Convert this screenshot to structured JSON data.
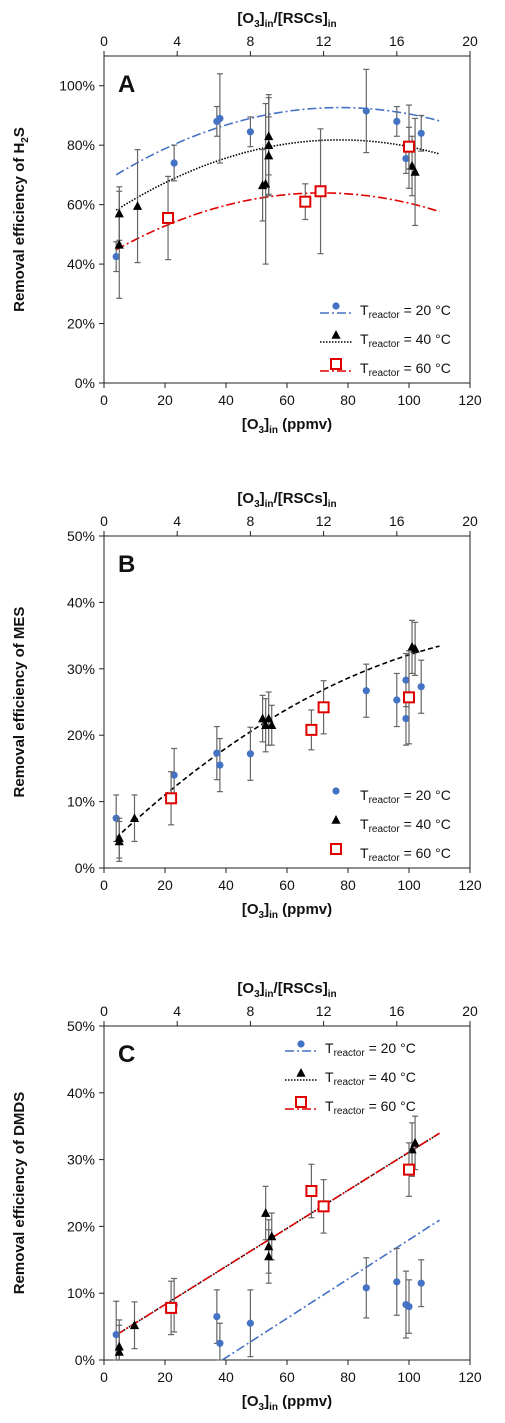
{
  "chart_data": [
    {
      "type": "scatter",
      "panel": "A",
      "xlabel": "[O3]in (ppmv)",
      "xlabel_parts": {
        "main": "[O",
        "sub1": "3",
        "mid": "]",
        "sub2": "in",
        "tail": " (ppmv)"
      },
      "x2label": "[O3]in/[RSCs]in",
      "x2label_parts": {
        "a": "[O",
        "s1": "3",
        "b": "]",
        "s2": "in",
        "c": "/[RSCs]",
        "s3": "in"
      },
      "ylabel": "Removal efficiency of H2S",
      "ylabel_parts": {
        "main": "Removal efficiency of H",
        "sub": "2",
        "tail": "S"
      },
      "xlim": [
        0,
        120
      ],
      "ylim": [
        0,
        110
      ],
      "x2lim": [
        0,
        20
      ],
      "xticks": [
        "0",
        "20",
        "40",
        "60",
        "80",
        "100",
        "120"
      ],
      "x2ticks": [
        "0",
        "4",
        "8",
        "12",
        "16",
        "20"
      ],
      "yticks": [
        "0%",
        "20%",
        "40%",
        "60%",
        "80%",
        "100%"
      ],
      "legend_position": "bottom-right",
      "series": [
        {
          "name": "Treactor = 20 °C",
          "label": {
            "main": "T",
            "sub": "reactor",
            "tail": " = 20 °C"
          },
          "marker": "circle",
          "color": "#4472C4",
          "line": "dashdot",
          "fit": [
            67.5,
            0.65,
            -0.0042
          ],
          "points": [
            [
              4,
              42.5,
              5
            ],
            [
              23,
              74,
              6
            ],
            [
              37,
              88,
              5
            ],
            [
              38,
              89,
              15
            ],
            [
              48,
              84.5,
              5
            ],
            [
              86,
              91.5,
              14
            ],
            [
              96,
              88,
              5
            ],
            [
              99,
              75.5,
              5
            ],
            [
              100,
              79,
              7
            ],
            [
              104,
              84,
              6
            ]
          ]
        },
        {
          "name": "Treactor = 40 °C",
          "label": {
            "main": "T",
            "sub": "reactor",
            "tail": " = 40 °C"
          },
          "marker": "triangle",
          "color": "#000000",
          "line": "dotted",
          "fit": [
            55.5,
            0.68,
            -0.0044
          ],
          "points": [
            [
              5,
              57,
              9
            ],
            [
              5,
              46.5,
              18
            ],
            [
              11,
              59.5,
              19
            ],
            [
              52,
              66.5,
              12
            ],
            [
              53,
              67,
              27
            ],
            [
              54,
              76.5,
              13
            ],
            [
              54,
              80,
              17
            ],
            [
              54,
              83,
              13
            ],
            [
              101,
              73,
              10
            ],
            [
              102,
              71,
              18
            ]
          ]
        },
        {
          "name": "Treactor = 60 °C",
          "label": {
            "main": "T",
            "sub": "reactor",
            "tail": " = 60 °C"
          },
          "marker": "square",
          "color": "#E00000",
          "line": "dashdot",
          "fit": [
            42.5,
            0.6,
            -0.0042
          ],
          "points": [
            [
              21,
              55.5,
              14
            ],
            [
              66,
              61,
              6
            ],
            [
              71,
              64.5,
              21
            ],
            [
              100,
              79.5,
              14
            ]
          ]
        }
      ]
    },
    {
      "type": "scatter",
      "panel": "B",
      "xlabel": "[O3]in (ppmv)",
      "xlabel_parts": {
        "main": "[O",
        "sub1": "3",
        "mid": "]",
        "sub2": "in",
        "tail": " (ppmv)"
      },
      "x2label": "[O3]in/[RSCs]in",
      "x2label_parts": {
        "a": "[O",
        "s1": "3",
        "b": "]",
        "s2": "in",
        "c": "/[RSCs]",
        "s3": "in"
      },
      "ylabel": "Removal efficiency of MES",
      "xlim": [
        0,
        120
      ],
      "ylim": [
        0,
        50
      ],
      "x2lim": [
        0,
        20
      ],
      "xticks": [
        "0",
        "20",
        "40",
        "60",
        "80",
        "100",
        "120"
      ],
      "x2ticks": [
        "0",
        "4",
        "8",
        "12",
        "16",
        "20"
      ],
      "yticks": [
        "0%",
        "10%",
        "20%",
        "30%",
        "40%",
        "50%"
      ],
      "legend_position": "bottom-right",
      "fit": {
        "coeffs": [
          2.8,
          0.44,
          -0.00147
        ],
        "color": "#000000",
        "line": "dashed"
      },
      "series": [
        {
          "name": "Treactor = 20 °C",
          "label": {
            "main": "T",
            "sub": "reactor",
            "tail": " = 20 °C"
          },
          "marker": "circle",
          "color": "#4472C4",
          "points": [
            [
              4,
              7.5,
              3.5
            ],
            [
              23,
              14,
              4
            ],
            [
              37,
              17.3,
              4
            ],
            [
              38,
              15.5,
              4
            ],
            [
              48,
              17.2,
              4
            ],
            [
              86,
              26.7,
              4
            ],
            [
              96,
              25.3,
              4
            ],
            [
              99,
              28.3,
              4
            ],
            [
              99,
              22.5,
              4
            ],
            [
              104,
              27.3,
              4
            ]
          ]
        },
        {
          "name": "Treactor = 40 °C",
          "label": {
            "main": "T",
            "sub": "reactor",
            "tail": " = 40 °C"
          },
          "marker": "triangle",
          "color": "#000000",
          "points": [
            [
              5,
              4.5,
              3
            ],
            [
              5,
              4,
              3
            ],
            [
              10,
              7.5,
              3.5
            ],
            [
              52,
              22.5,
              3.5
            ],
            [
              53,
              21.5,
              4
            ],
            [
              54,
              22.5,
              4
            ],
            [
              55,
              21.5,
              3
            ],
            [
              101,
              33.3,
              4
            ],
            [
              102,
              33,
              4
            ]
          ]
        },
        {
          "name": "Treactor = 60 °C",
          "label": {
            "main": "T",
            "sub": "reactor",
            "tail": " = 60 °C"
          },
          "marker": "square",
          "color": "#E00000",
          "points": [
            [
              22,
              10.5,
              4
            ],
            [
              68,
              20.8,
              3
            ],
            [
              72,
              24.2,
              4
            ],
            [
              100,
              25.7,
              7
            ]
          ]
        }
      ]
    },
    {
      "type": "scatter",
      "panel": "C",
      "xlabel": "[O3]in (ppmv)",
      "xlabel_parts": {
        "main": "[O",
        "sub1": "3",
        "mid": "]",
        "sub2": "in",
        "tail": " (ppmv)"
      },
      "x2label": "[O3]in/[RSCs]in",
      "x2label_parts": {
        "a": "[O",
        "s1": "3",
        "b": "]",
        "s2": "in",
        "c": "/[RSCs]",
        "s3": "in"
      },
      "ylabel": "Removal efficiency of DMDS",
      "xlim": [
        0,
        120
      ],
      "ylim": [
        0,
        50
      ],
      "x2lim": [
        0,
        20
      ],
      "xticks": [
        "0",
        "20",
        "40",
        "60",
        "80",
        "100",
        "120"
      ],
      "x2ticks": [
        "0",
        "4",
        "8",
        "12",
        "16",
        "20"
      ],
      "yticks": [
        "0%",
        "10%",
        "20%",
        "30%",
        "40%",
        "50%"
      ],
      "legend_position": "top-right",
      "series": [
        {
          "name": "Treactor = 20 °C",
          "label": {
            "main": "T",
            "sub": "reactor",
            "tail": " = 20 °C"
          },
          "marker": "circle",
          "color": "#4472C4",
          "line": "dashdot",
          "linear": {
            "slope": 0.294,
            "intercept": -11.4,
            "xfrom": 38.8
          },
          "points": [
            [
              4,
              3.8,
              5
            ],
            [
              23,
              8.2,
              4
            ],
            [
              37,
              6.5,
              4
            ],
            [
              38,
              2.5,
              3
            ],
            [
              48,
              5.5,
              5
            ],
            [
              86,
              10.8,
              4.5
            ],
            [
              96,
              11.7,
              5
            ],
            [
              99,
              8.3,
              5
            ],
            [
              100,
              8,
              4
            ],
            [
              104,
              11.5,
              3.5
            ]
          ]
        },
        {
          "name": "Treactor = 40 °C",
          "label": {
            "main": "T",
            "sub": "reactor",
            "tail": " = 40 °C"
          },
          "marker": "triangle",
          "color": "#000000",
          "line": "dotted",
          "linear": {
            "slope": 0.285,
            "intercept": 2.6,
            "xfrom": 4
          },
          "points": [
            [
              5,
              2,
              4
            ],
            [
              5,
              1.2,
              4
            ],
            [
              10,
              5.2,
              3.5
            ],
            [
              53,
              22,
              4
            ],
            [
              54,
              17,
              4
            ],
            [
              54,
              15.5,
              4
            ],
            [
              55,
              18.5,
              3.5
            ],
            [
              101,
              31.5,
              4
            ],
            [
              102,
              32.5,
              4
            ]
          ]
        },
        {
          "name": "Treactor = 60 °C",
          "label": {
            "main": "T",
            "sub": "reactor",
            "tail": " = 60 °C"
          },
          "marker": "square",
          "color": "#E00000",
          "line": "dashdot",
          "linear": {
            "slope": 0.285,
            "intercept": 2.6,
            "xfrom": 4
          },
          "points": [
            [
              22,
              7.8,
              4
            ],
            [
              68,
              25.3,
              4
            ],
            [
              72,
              23,
              4
            ],
            [
              100,
              28.5,
              4
            ]
          ]
        }
      ]
    }
  ]
}
